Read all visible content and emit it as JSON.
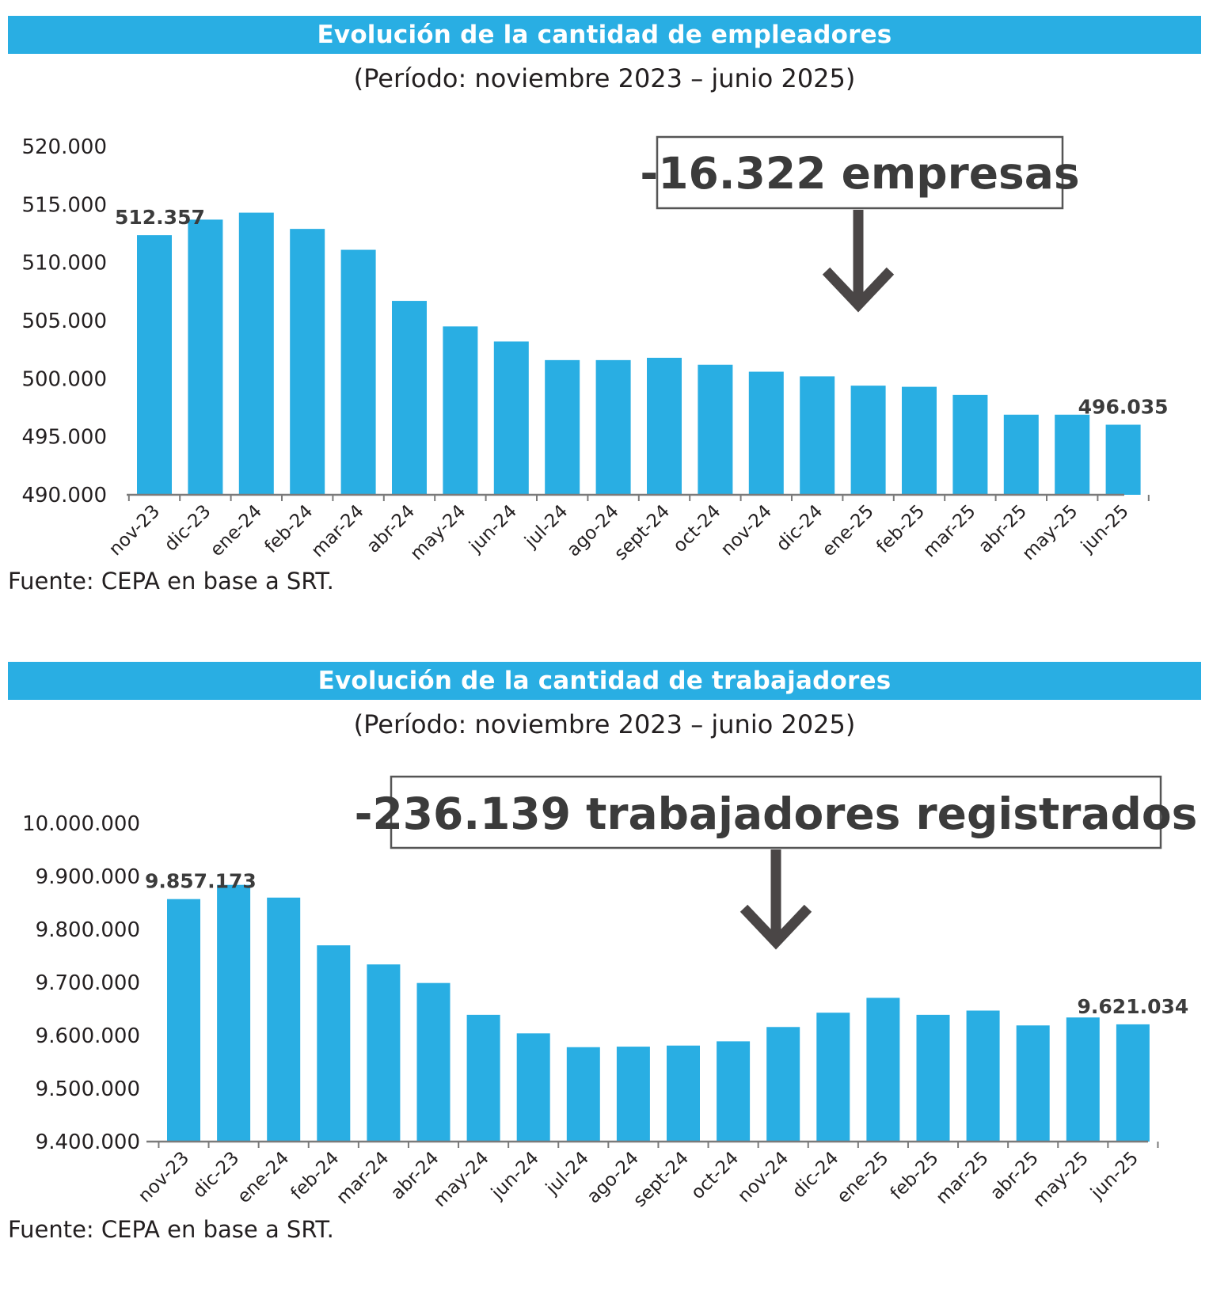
{
  "colors": {
    "accent": "#29aee3",
    "bar": "#29aee3",
    "axis": "#7a7a7a",
    "arrow": "#4a4646"
  },
  "footer_source": "Fuente: CEPA en base a SRT.",
  "chart_data": [
    {
      "type": "bar",
      "title": "Evolución de la cantidad de empleadores",
      "subtitle": "(Período: noviembre 2023 – junio 2025)",
      "callout": "-16.322 empresas",
      "categories": [
        "nov-23",
        "dic-23",
        "ene-24",
        "feb-24",
        "mar-24",
        "abr-24",
        "may-24",
        "jun-24",
        "jul-24",
        "ago-24",
        "sept-24",
        "oct-24",
        "nov-24",
        "dic-24",
        "ene-25",
        "feb-25",
        "mar-25",
        "abr-25",
        "may-25",
        "jun-25"
      ],
      "values": [
        512357,
        513700,
        514300,
        512900,
        511100,
        506700,
        504500,
        503200,
        501600,
        501600,
        501800,
        501200,
        500600,
        500200,
        499400,
        499300,
        498600,
        496900,
        496900,
        496035
      ],
      "ylim": [
        490000,
        520000
      ],
      "yticks": [
        490000,
        495000,
        500000,
        505000,
        510000,
        515000,
        520000
      ],
      "ytick_labels": [
        "490.000",
        "495.000",
        "500.000",
        "505.000",
        "510.000",
        "515.000",
        "520.000"
      ],
      "data_labels": [
        {
          "index": 0,
          "text": "512.357"
        },
        {
          "index": 19,
          "text": "496.035"
        }
      ],
      "xlabel": "",
      "ylabel": ""
    },
    {
      "type": "bar",
      "title": "Evolución de la cantidad de trabajadores",
      "subtitle": "(Período: noviembre 2023 – junio 2025)",
      "callout": "-236.139 trabajadores registrados",
      "categories": [
        "nov-23",
        "dic-23",
        "ene-24",
        "feb-24",
        "mar-24",
        "abr-24",
        "may-24",
        "jun-24",
        "jul-24",
        "ago-24",
        "sept-24",
        "oct-24",
        "nov-24",
        "dic-24",
        "ene-25",
        "feb-25",
        "mar-25",
        "abr-25",
        "may-25",
        "jun-25"
      ],
      "values": [
        9857173,
        9884000,
        9860000,
        9770000,
        9734000,
        9699000,
        9639000,
        9604000,
        9578000,
        9579000,
        9581000,
        9589000,
        9616000,
        9643000,
        9671000,
        9639000,
        9647000,
        9619000,
        9634000,
        9621034
      ],
      "ylim": [
        9400000,
        10000000
      ],
      "yticks": [
        9400000,
        9500000,
        9600000,
        9700000,
        9800000,
        9900000,
        10000000
      ],
      "ytick_labels": [
        "9.400.000",
        "9.500.000",
        "9.600.000",
        "9.700.000",
        "9.800.000",
        "9.900.000",
        "10.000.000"
      ],
      "data_labels": [
        {
          "index": 0,
          "text": "9.857.173"
        },
        {
          "index": 19,
          "text": "9.621.034"
        }
      ],
      "xlabel": "",
      "ylabel": ""
    }
  ]
}
